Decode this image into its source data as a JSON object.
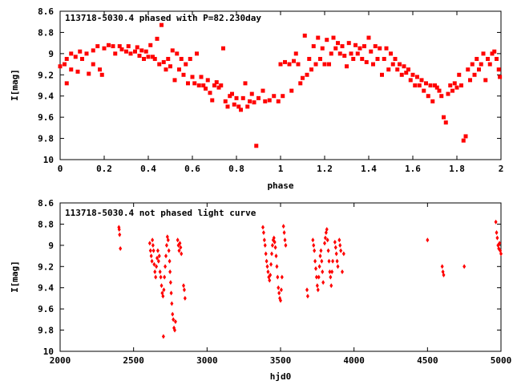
{
  "chart_data": [
    {
      "type": "scatter",
      "title": "113718-5030.4 phased with P=82.230day",
      "xlabel": "phase",
      "ylabel": "I[mag]",
      "xlim": [
        0,
        2
      ],
      "ylim": [
        8.6,
        10
      ],
      "y_inverted": true,
      "grid": false,
      "legend": "none",
      "marker_color": "#ff0000",
      "marker": "square",
      "x_ticks": [
        "0",
        "0.2",
        "0.4",
        "0.6",
        "0.8",
        "1",
        "1.2",
        "1.4",
        "1.6",
        "1.8",
        "2"
      ],
      "y_ticks": [
        "8.6",
        "8.8",
        "9",
        "9.2",
        "9.4",
        "9.6",
        "9.8",
        "10"
      ],
      "x_tick_values": [
        0,
        0.2,
        0.4,
        0.6,
        0.8,
        1,
        1.2,
        1.4,
        1.6,
        1.8,
        2
      ],
      "y_tick_values": [
        8.6,
        8.8,
        9.0,
        9.2,
        9.4,
        9.6,
        9.8,
        10.0
      ],
      "points": [
        [
          0.0,
          9.12
        ],
        [
          0.02,
          9.1
        ],
        [
          0.03,
          9.05
        ],
        [
          0.03,
          9.28
        ],
        [
          0.05,
          9.0
        ],
        [
          0.05,
          9.15
        ],
        [
          0.07,
          9.03
        ],
        [
          0.08,
          9.17
        ],
        [
          0.09,
          8.98
        ],
        [
          0.1,
          9.05
        ],
        [
          0.12,
          9.0
        ],
        [
          0.13,
          9.19
        ],
        [
          0.15,
          8.97
        ],
        [
          0.15,
          9.1
        ],
        [
          0.17,
          8.93
        ],
        [
          0.18,
          9.15
        ],
        [
          0.19,
          9.2
        ],
        [
          0.2,
          8.95
        ],
        [
          0.22,
          8.92
        ],
        [
          0.24,
          8.93
        ],
        [
          0.25,
          9.0
        ],
        [
          0.27,
          8.93
        ],
        [
          0.28,
          8.96
        ],
        [
          0.3,
          8.98
        ],
        [
          0.31,
          8.93
        ],
        [
          0.32,
          9.0
        ],
        [
          0.34,
          8.98
        ],
        [
          0.35,
          8.94
        ],
        [
          0.36,
          9.02
        ],
        [
          0.37,
          8.97
        ],
        [
          0.38,
          9.05
        ],
        [
          0.39,
          8.98
        ],
        [
          0.4,
          9.03
        ],
        [
          0.41,
          8.92
        ],
        [
          0.42,
          9.03
        ],
        [
          0.43,
          9.05
        ],
        [
          0.44,
          8.86
        ],
        [
          0.45,
          9.1
        ],
        [
          0.46,
          8.73
        ],
        [
          0.47,
          9.08
        ],
        [
          0.48,
          9.15
        ],
        [
          0.49,
          9.05
        ],
        [
          0.5,
          9.12
        ],
        [
          0.51,
          8.97
        ],
        [
          0.52,
          9.25
        ],
        [
          0.53,
          9.0
        ],
        [
          0.54,
          9.15
        ],
        [
          0.55,
          9.05
        ],
        [
          0.56,
          9.2
        ],
        [
          0.57,
          9.1
        ],
        [
          0.58,
          9.28
        ],
        [
          0.59,
          9.05
        ],
        [
          0.6,
          9.22
        ],
        [
          0.61,
          9.28
        ],
        [
          0.62,
          9.0
        ],
        [
          0.63,
          9.3
        ],
        [
          0.64,
          9.22
        ],
        [
          0.65,
          9.3
        ],
        [
          0.66,
          9.33
        ],
        [
          0.67,
          9.25
        ],
        [
          0.68,
          9.37
        ],
        [
          0.69,
          9.44
        ],
        [
          0.7,
          9.3
        ],
        [
          0.71,
          9.27
        ],
        [
          0.72,
          9.32
        ],
        [
          0.73,
          9.3
        ],
        [
          0.74,
          8.95
        ],
        [
          0.75,
          9.45
        ],
        [
          0.76,
          9.5
        ],
        [
          0.77,
          9.4
        ],
        [
          0.78,
          9.38
        ],
        [
          0.79,
          9.48
        ],
        [
          0.8,
          9.42
        ],
        [
          0.81,
          9.5
        ],
        [
          0.82,
          9.53
        ],
        [
          0.83,
          9.42
        ],
        [
          0.84,
          9.28
        ],
        [
          0.85,
          9.5
        ],
        [
          0.86,
          9.45
        ],
        [
          0.87,
          9.38
        ],
        [
          0.88,
          9.46
        ],
        [
          0.89,
          9.87
        ],
        [
          0.9,
          9.42
        ],
        [
          0.92,
          9.35
        ],
        [
          0.93,
          9.45
        ],
        [
          0.95,
          9.44
        ],
        [
          0.97,
          9.4
        ],
        [
          0.99,
          9.45
        ],
        [
          1.0,
          9.1
        ],
        [
          1.01,
          9.4
        ],
        [
          1.02,
          9.08
        ],
        [
          1.04,
          9.1
        ],
        [
          1.05,
          9.35
        ],
        [
          1.06,
          9.07
        ],
        [
          1.07,
          9.0
        ],
        [
          1.08,
          9.1
        ],
        [
          1.09,
          9.28
        ],
        [
          1.1,
          9.23
        ],
        [
          1.11,
          8.83
        ],
        [
          1.12,
          9.2
        ],
        [
          1.13,
          9.05
        ],
        [
          1.14,
          9.15
        ],
        [
          1.15,
          8.93
        ],
        [
          1.16,
          9.1
        ],
        [
          1.17,
          8.85
        ],
        [
          1.18,
          9.05
        ],
        [
          1.19,
          8.95
        ],
        [
          1.2,
          9.1
        ],
        [
          1.21,
          8.87
        ],
        [
          1.22,
          9.1
        ],
        [
          1.23,
          9.0
        ],
        [
          1.24,
          8.85
        ],
        [
          1.25,
          8.95
        ],
        [
          1.26,
          8.9
        ],
        [
          1.27,
          9.0
        ],
        [
          1.28,
          8.93
        ],
        [
          1.29,
          9.02
        ],
        [
          1.3,
          9.12
        ],
        [
          1.31,
          8.9
        ],
        [
          1.32,
          9.0
        ],
        [
          1.33,
          9.05
        ],
        [
          1.34,
          8.92
        ],
        [
          1.35,
          9.0
        ],
        [
          1.36,
          8.95
        ],
        [
          1.37,
          9.05
        ],
        [
          1.38,
          8.93
        ],
        [
          1.39,
          9.08
        ],
        [
          1.4,
          8.85
        ],
        [
          1.41,
          8.98
        ],
        [
          1.42,
          9.1
        ],
        [
          1.43,
          8.93
        ],
        [
          1.44,
          9.05
        ],
        [
          1.45,
          8.95
        ],
        [
          1.46,
          9.2
        ],
        [
          1.47,
          9.05
        ],
        [
          1.48,
          8.95
        ],
        [
          1.49,
          9.15
        ],
        [
          1.5,
          9.0
        ],
        [
          1.51,
          9.1
        ],
        [
          1.52,
          9.05
        ],
        [
          1.53,
          9.15
        ],
        [
          1.54,
          9.1
        ],
        [
          1.55,
          9.2
        ],
        [
          1.56,
          9.12
        ],
        [
          1.57,
          9.18
        ],
        [
          1.58,
          9.15
        ],
        [
          1.59,
          9.25
        ],
        [
          1.6,
          9.2
        ],
        [
          1.61,
          9.3
        ],
        [
          1.62,
          9.22
        ],
        [
          1.63,
          9.3
        ],
        [
          1.64,
          9.25
        ],
        [
          1.65,
          9.35
        ],
        [
          1.66,
          9.28
        ],
        [
          1.67,
          9.4
        ],
        [
          1.68,
          9.3
        ],
        [
          1.69,
          9.45
        ],
        [
          1.7,
          9.3
        ],
        [
          1.71,
          9.32
        ],
        [
          1.72,
          9.35
        ],
        [
          1.73,
          9.4
        ],
        [
          1.74,
          9.6
        ],
        [
          1.75,
          9.65
        ],
        [
          1.76,
          9.38
        ],
        [
          1.77,
          9.3
        ],
        [
          1.78,
          9.35
        ],
        [
          1.79,
          9.28
        ],
        [
          1.8,
          9.32
        ],
        [
          1.81,
          9.2
        ],
        [
          1.82,
          9.3
        ],
        [
          1.83,
          9.82
        ],
        [
          1.84,
          9.78
        ],
        [
          1.85,
          9.15
        ],
        [
          1.86,
          9.25
        ],
        [
          1.87,
          9.1
        ],
        [
          1.88,
          9.2
        ],
        [
          1.89,
          9.05
        ],
        [
          1.9,
          9.15
        ],
        [
          1.91,
          9.1
        ],
        [
          1.92,
          9.0
        ],
        [
          1.93,
          9.25
        ],
        [
          1.94,
          9.05
        ],
        [
          1.95,
          9.1
        ],
        [
          1.96,
          9.0
        ],
        [
          1.97,
          8.98
        ],
        [
          1.98,
          9.05
        ],
        [
          1.99,
          9.15
        ],
        [
          1.995,
          9.22
        ]
      ]
    },
    {
      "type": "scatter",
      "title": "113718-5030.4 not phased light curve",
      "xlabel": "hjd0",
      "ylabel": "I[mag]",
      "xlim": [
        2000,
        5000
      ],
      "ylim": [
        8.6,
        10
      ],
      "y_inverted": true,
      "grid": false,
      "legend": "none",
      "marker_color": "#ff0000",
      "marker": "diamond",
      "x_ticks": [
        "2000",
        "2500",
        "3000",
        "3500",
        "4000",
        "4500",
        "5000"
      ],
      "y_ticks": [
        "8.6",
        "8.8",
        "9",
        "9.2",
        "9.4",
        "9.6",
        "9.8",
        "10"
      ],
      "x_tick_values": [
        2000,
        2500,
        3000,
        3500,
        4000,
        4500,
        5000
      ],
      "y_tick_values": [
        8.6,
        8.8,
        9.0,
        9.2,
        9.4,
        9.6,
        9.8,
        10.0
      ],
      "points": [
        [
          2400,
          8.83
        ],
        [
          2402,
          8.85
        ],
        [
          2405,
          8.9
        ],
        [
          2410,
          9.03
        ],
        [
          2610,
          8.98
        ],
        [
          2615,
          9.05
        ],
        [
          2620,
          9.1
        ],
        [
          2625,
          9.15
        ],
        [
          2628,
          8.95
        ],
        [
          2632,
          9.0
        ],
        [
          2636,
          9.05
        ],
        [
          2640,
          9.18
        ],
        [
          2645,
          9.25
        ],
        [
          2650,
          9.3
        ],
        [
          2655,
          9.2
        ],
        [
          2660,
          9.12
        ],
        [
          2665,
          9.05
        ],
        [
          2670,
          9.15
        ],
        [
          2675,
          9.1
        ],
        [
          2680,
          9.25
        ],
        [
          2685,
          9.3
        ],
        [
          2690,
          9.38
        ],
        [
          2695,
          9.45
        ],
        [
          2700,
          9.48
        ],
        [
          2703,
          9.86
        ],
        [
          2706,
          9.42
        ],
        [
          2710,
          9.3
        ],
        [
          2715,
          9.2
        ],
        [
          2720,
          9.1
        ],
        [
          2725,
          9.0
        ],
        [
          2730,
          8.92
        ],
        [
          2735,
          8.95
        ],
        [
          2740,
          9.05
        ],
        [
          2745,
          9.15
        ],
        [
          2748,
          9.25
        ],
        [
          2752,
          9.35
        ],
        [
          2756,
          9.45
        ],
        [
          2760,
          9.55
        ],
        [
          2765,
          9.65
        ],
        [
          2770,
          9.7
        ],
        [
          2775,
          9.78
        ],
        [
          2780,
          9.8
        ],
        [
          2785,
          9.72
        ],
        [
          2800,
          8.95
        ],
        [
          2805,
          9.0
        ],
        [
          2810,
          9.05
        ],
        [
          2815,
          8.98
        ],
        [
          2820,
          9.02
        ],
        [
          2825,
          9.08
        ],
        [
          2840,
          9.38
        ],
        [
          2845,
          9.42
        ],
        [
          2850,
          9.5
        ],
        [
          3380,
          8.83
        ],
        [
          3385,
          8.88
        ],
        [
          3390,
          8.95
        ],
        [
          3395,
          9.0
        ],
        [
          3400,
          9.08
        ],
        [
          3405,
          9.15
        ],
        [
          3410,
          9.2
        ],
        [
          3415,
          9.25
        ],
        [
          3420,
          9.3
        ],
        [
          3425,
          9.33
        ],
        [
          3430,
          9.28
        ],
        [
          3435,
          9.18
        ],
        [
          3440,
          9.08
        ],
        [
          3445,
          9.0
        ],
        [
          3450,
          8.95
        ],
        [
          3455,
          8.93
        ],
        [
          3460,
          8.97
        ],
        [
          3465,
          9.02
        ],
        [
          3470,
          9.1
        ],
        [
          3475,
          9.2
        ],
        [
          3480,
          9.3
        ],
        [
          3485,
          9.4
        ],
        [
          3490,
          9.45
        ],
        [
          3495,
          9.5
        ],
        [
          3500,
          9.52
        ],
        [
          3505,
          9.42
        ],
        [
          3510,
          9.3
        ],
        [
          3520,
          8.82
        ],
        [
          3525,
          8.88
        ],
        [
          3530,
          8.95
        ],
        [
          3535,
          9.0
        ],
        [
          3680,
          9.42
        ],
        [
          3685,
          9.48
        ],
        [
          3720,
          8.95
        ],
        [
          3725,
          9.0
        ],
        [
          3730,
          9.05
        ],
        [
          3735,
          9.15
        ],
        [
          3740,
          9.22
        ],
        [
          3745,
          9.3
        ],
        [
          3750,
          9.38
        ],
        [
          3755,
          9.42
        ],
        [
          3760,
          9.3
        ],
        [
          3765,
          9.2
        ],
        [
          3770,
          9.1
        ],
        [
          3775,
          9.05
        ],
        [
          3780,
          9.15
        ],
        [
          3785,
          9.25
        ],
        [
          3790,
          9.35
        ],
        [
          3800,
          8.98
        ],
        [
          3805,
          8.93
        ],
        [
          3810,
          8.88
        ],
        [
          3815,
          8.85
        ],
        [
          3820,
          8.95
        ],
        [
          3825,
          9.05
        ],
        [
          3830,
          9.15
        ],
        [
          3835,
          9.25
        ],
        [
          3840,
          9.3
        ],
        [
          3845,
          9.38
        ],
        [
          3850,
          9.25
        ],
        [
          3855,
          9.15
        ],
        [
          3870,
          8.97
        ],
        [
          3875,
          9.02
        ],
        [
          3880,
          9.08
        ],
        [
          3885,
          9.15
        ],
        [
          3890,
          9.2
        ],
        [
          3900,
          8.95
        ],
        [
          3905,
          9.0
        ],
        [
          3910,
          9.05
        ],
        [
          3920,
          9.25
        ],
        [
          3930,
          9.08
        ],
        [
          4500,
          8.95
        ],
        [
          4600,
          9.2
        ],
        [
          4605,
          9.25
        ],
        [
          4610,
          9.28
        ],
        [
          4750,
          9.2
        ],
        [
          4965,
          8.78
        ],
        [
          4970,
          8.88
        ],
        [
          4975,
          8.93
        ],
        [
          4980,
          9.0
        ],
        [
          4985,
          9.03
        ],
        [
          4990,
          8.98
        ],
        [
          4995,
          9.05
        ],
        [
          5000,
          9.08
        ]
      ]
    }
  ]
}
